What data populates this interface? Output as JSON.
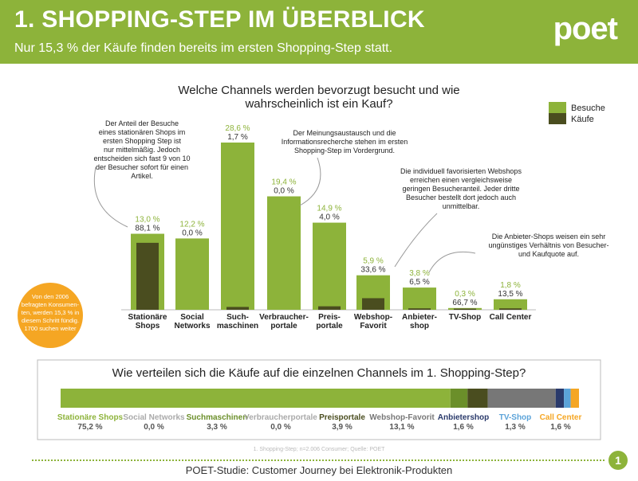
{
  "header": {
    "title": "1. SHOPPING-STEP IM ÜBERBLICK",
    "subtitle": "Nur 15,3 % der Käufe finden bereits im ersten Shopping-Step statt.",
    "logo": "poet"
  },
  "colors": {
    "green": "#8db33a",
    "dark_olive": "#4a4d1f",
    "grey": "#777777",
    "navy": "#2a3a6b",
    "light_blue": "#5ba3d9",
    "orange": "#f5a623"
  },
  "chart_data": [
    {
      "type": "bar",
      "title": "Welche Channels werden bevorzugt besucht und wie wahrscheinlich ist ein Kauf?",
      "title_lines": [
        "Welche Channels werden bevorzugt besucht und wie",
        "wahrscheinlich ist ein Kauf?"
      ],
      "categories": [
        [
          "Stationäre",
          "Shops"
        ],
        [
          "Social",
          "Networks"
        ],
        [
          "Such-",
          "maschinen"
        ],
        [
          "Verbraucher-",
          "portale"
        ],
        [
          "Preis-",
          "portale"
        ],
        [
          "Webshop-",
          "Favorit"
        ],
        [
          "Anbieter-",
          "shop"
        ],
        [
          "TV-Shop"
        ],
        [
          "Call Center"
        ]
      ],
      "series": [
        {
          "name": "Besuche",
          "values": [
            13.0,
            12.2,
            28.6,
            19.4,
            14.9,
            5.9,
            3.8,
            0.3,
            1.8
          ],
          "labels": [
            "13,0 %",
            "12,2 %",
            "28,6 %",
            "19,4 %",
            "14,9 %",
            "5,9 %",
            "3,8 %",
            "0,3 %",
            "1,8 %"
          ]
        },
        {
          "name": "Käufe",
          "values": [
            88.1,
            0.0,
            1.7,
            0.0,
            4.0,
            33.6,
            6.5,
            66.7,
            13.5
          ],
          "labels": [
            "88,1 %",
            "0,0 %",
            "1,7 %",
            "0,0 %",
            "4,0 %",
            "33,6 %",
            "6,5 %",
            "66,7 %",
            "13,5 %"
          ]
        }
      ],
      "legend": "top-right",
      "annotations": [
        {
          "lines": [
            "Der Anteil der Besuche",
            "eines stationären Shops im",
            "ersten Shopping Step ist",
            "nur mittelmäßig. Jedoch",
            "entscheiden sich fast 9 von 10",
            "der Besucher sofort für einen",
            "Artikel."
          ]
        },
        {
          "lines": [
            "Der Meinungsaustausch und die",
            "Informationsrecherche stehen im ersten",
            "Shopping-Step im Vordergrund."
          ]
        },
        {
          "lines": [
            "Die individuell favorisierten Webshops",
            "erreichen einen vergleichsweise",
            "geringen Besucheranteil. Jeder dritte",
            "Besucher bestellt dort jedoch auch",
            "unmittelbar."
          ]
        },
        {
          "lines": [
            "Die Anbieter-Shops weisen ein sehr",
            "ungünstiges Verhältnis von Besucher-",
            "und Kaufquote auf."
          ]
        }
      ],
      "badge_lines": [
        "Von den 2006",
        "befragten Konsumen-",
        "ten, werden 15,3 % in",
        "diesem Schritt fündig.",
        "1700 suchen weiter"
      ]
    },
    {
      "type": "bar",
      "title": "Wie verteilen sich die Käufe auf die einzelnen Channels im 1. Shopping-Step?",
      "categories": [
        "Stationäre Shops",
        "Social Networks",
        "Suchmaschinen",
        "Verbraucherportale",
        "Preisportale",
        "Webshop-Favorit",
        "Anbietershop",
        "TV-Shop",
        "Call Center"
      ],
      "values": [
        75.2,
        0.0,
        3.3,
        0.0,
        3.9,
        13.1,
        1.6,
        1.3,
        1.6
      ],
      "value_labels": [
        "75,2 %",
        "0,0 %",
        "3,3 %",
        "0,0 %",
        "3,9 %",
        "13,1 %",
        "1,6 %",
        "1,3 %",
        "1,6 %"
      ],
      "colors": [
        "#8db33a",
        "#bbbbbb",
        "#6b8f2a",
        "#bbbbbb",
        "#4a4d1f",
        "#777777",
        "#2a3a6b",
        "#5ba3d9",
        "#f5a623"
      ]
    }
  ],
  "source": "1. Shopping-Step; n=2.006 Consumer; Quelle: POET",
  "footer": {
    "text": "POET-Studie: Customer Journey bei Elektronik-Produkten",
    "page": "1"
  }
}
